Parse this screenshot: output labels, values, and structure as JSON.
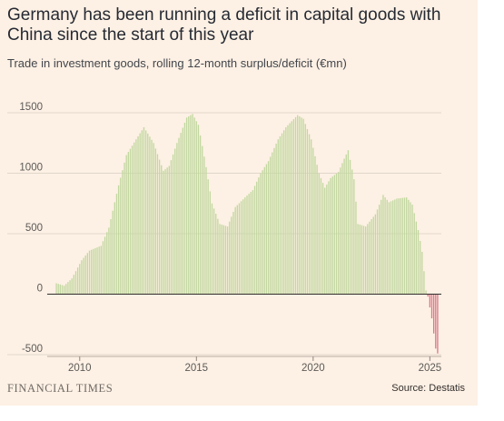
{
  "title": "Germany has been running a deficit in capital goods with China since the start of this year",
  "subtitle": "Trade in investment goods, rolling 12-month surplus/deficit (€mn)",
  "brand": "FINANCIAL TIMES",
  "source": "Source: Destatis",
  "colors": {
    "background": "#fdf0e4",
    "positive_bar": "#c2d8a0",
    "negative_bar": "#d97a8a",
    "gridline": "#e2d7cb",
    "zero_line": "#33302e"
  },
  "chart_data": {
    "type": "bar",
    "x_unit": "month",
    "x_start": "2009-01",
    "x_end": "2025-05",
    "ylim": [
      -500,
      1500
    ],
    "yticks": [
      -500,
      0,
      500,
      1000,
      1500
    ],
    "xticks": [
      "2010",
      "2015",
      "2020",
      "2025"
    ],
    "grid": "horizontal",
    "keyframes": [
      [
        "2009-01",
        90
      ],
      [
        "2009-05",
        70
      ],
      [
        "2009-09",
        130
      ],
      [
        "2010-02",
        280
      ],
      [
        "2010-06",
        360
      ],
      [
        "2010-12",
        400
      ],
      [
        "2011-04",
        550
      ],
      [
        "2011-09",
        900
      ],
      [
        "2012-01",
        1150
      ],
      [
        "2012-06",
        1280
      ],
      [
        "2012-10",
        1380
      ],
      [
        "2013-03",
        1250
      ],
      [
        "2013-08",
        1020
      ],
      [
        "2013-11",
        1060
      ],
      [
        "2014-03",
        1250
      ],
      [
        "2014-08",
        1460
      ],
      [
        "2014-11",
        1490
      ],
      [
        "2015-02",
        1400
      ],
      [
        "2015-06",
        1050
      ],
      [
        "2015-09",
        750
      ],
      [
        "2016-01",
        580
      ],
      [
        "2016-05",
        560
      ],
      [
        "2016-09",
        720
      ],
      [
        "2017-02",
        800
      ],
      [
        "2017-06",
        860
      ],
      [
        "2017-10",
        1000
      ],
      [
        "2018-02",
        1100
      ],
      [
        "2018-07",
        1280
      ],
      [
        "2018-11",
        1380
      ],
      [
        "2019-05",
        1480
      ],
      [
        "2019-08",
        1450
      ],
      [
        "2019-12",
        1280
      ],
      [
        "2020-04",
        1000
      ],
      [
        "2020-07",
        880
      ],
      [
        "2020-10",
        960
      ],
      [
        "2021-02",
        1010
      ],
      [
        "2021-05",
        1120
      ],
      [
        "2021-07",
        1190
      ],
      [
        "2021-10",
        950
      ],
      [
        "2021-12",
        580
      ],
      [
        "2022-04",
        560
      ],
      [
        "2022-09",
        660
      ],
      [
        "2023-01",
        820
      ],
      [
        "2023-04",
        760
      ],
      [
        "2023-08",
        790
      ],
      [
        "2024-01",
        800
      ],
      [
        "2024-04",
        740
      ],
      [
        "2024-07",
        530
      ],
      [
        "2024-09",
        350
      ],
      [
        "2024-11",
        30
      ],
      [
        "2024-12",
        -20
      ],
      [
        "2025-02",
        -200
      ],
      [
        "2025-04",
        -450
      ],
      [
        "2025-05",
        -490
      ]
    ]
  }
}
